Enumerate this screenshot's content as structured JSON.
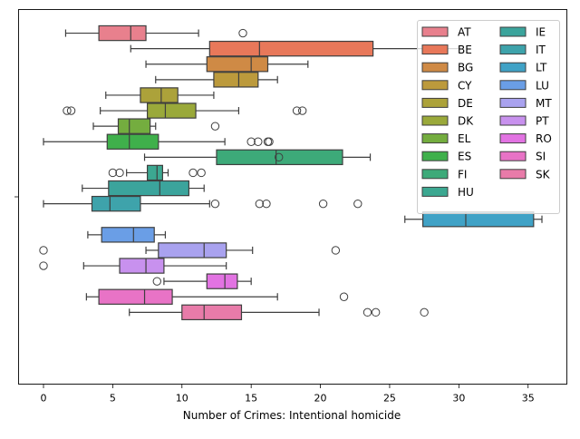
{
  "chart_data": {
    "type": "boxplot",
    "orientation": "horizontal",
    "xlabel": "Number of Crimes: Intentional homicide",
    "ylabel": "",
    "xlim": [
      -1.8,
      37.8
    ],
    "x_ticks": [
      0,
      5,
      10,
      15,
      20,
      25,
      30,
      35
    ],
    "x_tick_labels": [
      "0",
      "5",
      "10",
      "15",
      "20",
      "25",
      "30",
      "35"
    ],
    "legend_position": "upper-right",
    "series": [
      {
        "name": "AT",
        "color": "#e8808d",
        "whisker_low": 1.6,
        "q1": 4.0,
        "median": 6.3,
        "q3": 7.4,
        "whisker_high": 11.2,
        "outliers": [
          14.4
        ]
      },
      {
        "name": "BE",
        "color": "#e8785a",
        "whisker_low": 6.3,
        "q1": 12.0,
        "median": 15.6,
        "q3": 23.8,
        "whisker_high": 30.0,
        "outliers": []
      },
      {
        "name": "BG",
        "color": "#cf8a45",
        "whisker_low": 7.4,
        "q1": 11.8,
        "median": 15.0,
        "q3": 16.2,
        "whisker_high": 19.1,
        "outliers": []
      },
      {
        "name": "CY",
        "color": "#bc9a3c",
        "whisker_low": 8.1,
        "q1": 12.3,
        "median": 14.1,
        "q3": 15.5,
        "whisker_high": 16.9,
        "outliers": []
      },
      {
        "name": "DE",
        "color": "#aca23a",
        "whisker_low": 4.5,
        "q1": 7.0,
        "median": 8.5,
        "q3": 9.7,
        "whisker_high": 12.3,
        "outliers": []
      },
      {
        "name": "DK",
        "color": "#9aa93a",
        "whisker_low": 4.1,
        "q1": 7.5,
        "median": 8.8,
        "q3": 11.0,
        "whisker_high": 14.1,
        "outliers": [
          1.7,
          2.0,
          18.3,
          18.7
        ]
      },
      {
        "name": "EL",
        "color": "#74ad3f",
        "whisker_low": 3.6,
        "q1": 5.4,
        "median": 6.2,
        "q3": 7.7,
        "whisker_high": 8.1,
        "outliers": [
          12.4
        ]
      },
      {
        "name": "ES",
        "color": "#3fb04b",
        "whisker_low": 0.0,
        "q1": 4.6,
        "median": 6.2,
        "q3": 8.3,
        "whisker_high": 13.1,
        "outliers": [
          15.0,
          15.5,
          16.2,
          16.3
        ]
      },
      {
        "name": "FI",
        "color": "#3daa79",
        "whisker_low": 7.3,
        "q1": 12.5,
        "median": 16.8,
        "q3": 21.6,
        "whisker_high": 23.6,
        "outliers": [
          17.0
        ]
      },
      {
        "name": "HU",
        "color": "#3ca891",
        "whisker_low": 6.0,
        "q1": 7.5,
        "median": 8.2,
        "q3": 8.6,
        "whisker_high": 9.0,
        "outliers": [
          5.0,
          5.5,
          10.8,
          11.4
        ]
      },
      {
        "name": "IE",
        "color": "#3ba49c",
        "whisker_low": 2.8,
        "q1": 4.7,
        "median": 8.4,
        "q3": 10.5,
        "whisker_high": 11.6,
        "outliers": []
      },
      {
        "name": "IT",
        "color": "#3ea3ab",
        "whisker_low": 0.0,
        "q1": 3.5,
        "median": 4.8,
        "q3": 7.0,
        "whisker_high": 12.0,
        "outliers": [
          12.4,
          15.6,
          16.1,
          20.2,
          22.7
        ]
      },
      {
        "name": "LT",
        "color": "#40a2c6",
        "whisker_low": 26.1,
        "q1": 27.4,
        "median": 30.5,
        "q3": 35.4,
        "whisker_high": 36.0,
        "outliers": []
      },
      {
        "name": "LU",
        "color": "#6a9ee6",
        "whisker_low": 3.2,
        "q1": 4.2,
        "median": 6.5,
        "q3": 8.0,
        "whisker_high": 8.8,
        "outliers": []
      },
      {
        "name": "MT",
        "color": "#a9a2ef",
        "whisker_low": 7.4,
        "q1": 8.3,
        "median": 11.6,
        "q3": 13.2,
        "whisker_high": 15.1,
        "outliers": [
          0.0,
          21.1
        ]
      },
      {
        "name": "PT",
        "color": "#c891ee",
        "whisker_low": 2.9,
        "q1": 5.5,
        "median": 7.4,
        "q3": 8.7,
        "whisker_high": 13.2,
        "outliers": [
          0.0
        ]
      },
      {
        "name": "RO",
        "color": "#e273e2",
        "whisker_low": 8.7,
        "q1": 11.8,
        "median": 13.1,
        "q3": 14.0,
        "whisker_high": 15.0,
        "outliers": [
          8.2
        ]
      },
      {
        "name": "SI",
        "color": "#e873c6",
        "whisker_low": 3.1,
        "q1": 4.0,
        "median": 7.3,
        "q3": 9.3,
        "whisker_high": 16.9,
        "outliers": [
          21.7
        ]
      },
      {
        "name": "SK",
        "color": "#e87ba9",
        "whisker_low": 6.2,
        "q1": 10.0,
        "median": 11.6,
        "q3": 14.3,
        "whisker_high": 19.9,
        "outliers": [
          23.4,
          24.0,
          27.5
        ]
      }
    ]
  }
}
